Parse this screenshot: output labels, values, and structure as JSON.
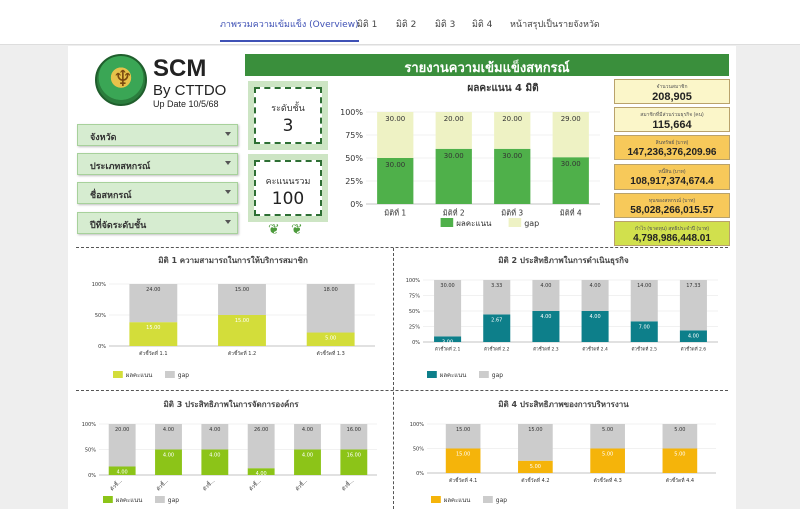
{
  "nav": {
    "tabs": [
      "ภาพรวมความเข้มแข็ง (Overview)",
      "มิติ 1",
      "มิติ 2",
      "มิติ 3",
      "มิติ 4",
      "หน้าสรุปเป็นรายจังหวัด"
    ],
    "active": 0,
    "accent": "#3f51b5"
  },
  "brand": {
    "title": "SCM",
    "subtitle": "By CTTDO",
    "updated": "Up Date 10/5/68"
  },
  "filters": [
    "จังหวัด",
    "ประเภทสหกรณ์",
    "ชื่อสหกรณ์",
    "ปีที่จัดระดับชั้น"
  ],
  "banner": "รายงานความเข้มแข็งสหกรณ์",
  "scores": {
    "level": {
      "label": "ระดับชั้น",
      "value": "3"
    },
    "total": {
      "label": "คะแนนรวม",
      "value": "100"
    }
  },
  "kpis": [
    {
      "label": "จำนวนสมาชิก",
      "value": "208,905",
      "color": "#fbf6c9"
    },
    {
      "label": "สมาชิกที่มีส่วนร่วมธุรกิจ (คน)",
      "value": "115,664",
      "color": "#fbf6c9"
    },
    {
      "label": "สินทรัพย์ (บาท)",
      "value": "147,236,376,209.96",
      "color": "#f7c95a"
    },
    {
      "label": "หนี้สิน (บาท)",
      "value": "108,917,374,674.4",
      "color": "#f7c95a"
    },
    {
      "label": "ทุนของสหกรณ์ (บาท)",
      "value": "58,028,266,015.57",
      "color": "#f7c95a"
    },
    {
      "label": "กำไร (ขาดทุน) สุทธิประจำปี (บาท)",
      "value": "4,798,986,448.01",
      "color": "#d1e04d"
    }
  ],
  "legend": {
    "score": "ผลคะแนน",
    "gap": "gap"
  },
  "chart_data": [
    {
      "type": "bar",
      "stacked": true,
      "title": "ผลคะแนน 4 มิติ",
      "categories": [
        "มิติที่ 1",
        "มิติที่ 2",
        "มิติที่ 3",
        "มิติที่ 4"
      ],
      "series": [
        {
          "name": "ผลคะแนน",
          "values": [
            30,
            30,
            30,
            30
          ],
          "labels": [
            "30.00",
            "30.00",
            "30.00",
            "30.00"
          ],
          "color": "#4fb04a"
        },
        {
          "name": "gap",
          "values": [
            30,
            20,
            20,
            29
          ],
          "labels": [
            "30.00",
            "20.00",
            "20.00",
            "29.00"
          ],
          "color": "#eef2c4"
        }
      ],
      "ytick_labels": [
        "0%",
        "25%",
        "50%",
        "75%",
        "100%"
      ],
      "legend_position": "bottom"
    },
    {
      "type": "bar",
      "stacked": true,
      "title": "มิติ 1 ความสามารถในการให้บริการสมาชิก",
      "categories": [
        "ตัวชี้วัดที่ 1.1",
        "ตัวชี้วัดที่ 1.2",
        "ตัวชี้วัดที่ 1.3"
      ],
      "series": [
        {
          "name": "ผลคะแนน",
          "values": [
            15,
            15,
            5
          ],
          "labels": [
            "15.00",
            "15.00",
            "5.00"
          ],
          "color": "#d3dd3a"
        },
        {
          "name": "gap",
          "values": [
            24,
            15,
            18
          ],
          "labels": [
            "24.00",
            "15.00",
            "18.00"
          ],
          "color": "#cccccc"
        }
      ],
      "ytick_labels": [
        "0%",
        "50%",
        "100%"
      ],
      "legend_position": "bottom-left"
    },
    {
      "type": "bar",
      "stacked": true,
      "title": "มิติ 2 ประสิทธิภาพในการดำเนินธุรกิจ",
      "categories": [
        "ตัวชี้วัดที่ 2.1",
        "ตัวชี้วัดที่ 2.2",
        "ตัวชี้วัดที่ 2.3",
        "ตัวชี้วัดที่ 2.4",
        "ตัวชี้วัดที่ 2.5",
        "ตัวชี้วัดที่ 2.6"
      ],
      "series": [
        {
          "name": "ผลคะแนน",
          "values": [
            3,
            2.67,
            4,
            4,
            7,
            4
          ],
          "labels": [
            "3.00",
            "2.67",
            "4.00",
            "4.00",
            "7.00",
            "4.00"
          ],
          "color": "#0d7f8a"
        },
        {
          "name": "gap",
          "values": [
            30,
            3.33,
            4,
            4,
            14,
            17.33
          ],
          "labels": [
            "30.00",
            "3.33",
            "4.00",
            "4.00",
            "14.00",
            "17.33"
          ],
          "color": "#cccccc"
        }
      ],
      "ytick_labels": [
        "0%",
        "25%",
        "50%",
        "75%",
        "100%"
      ],
      "legend_position": "bottom-left"
    },
    {
      "type": "bar",
      "stacked": true,
      "title": "มิติ 3 ประสิทธิภาพในการจัดการองค์กร",
      "categories": [
        "ตัวชี้...",
        "ตัวชี้...",
        "ตัวชี้...",
        "ตัวชี้...",
        "ตัวชี้...",
        "ตัวชี้..."
      ],
      "series": [
        {
          "name": "ผลคะแนน",
          "values": [
            4,
            4,
            4,
            4,
            4,
            16
          ],
          "labels": [
            "4.00",
            "4.00",
            "4.00",
            "4.00",
            "4.00",
            "16.00"
          ],
          "color": "#8cc418"
        },
        {
          "name": "gap",
          "values": [
            20,
            4,
            4,
            26,
            4,
            16
          ],
          "labels": [
            "20.00",
            "4.00",
            "4.00",
            "26.00",
            "4.00",
            "16.00"
          ],
          "color": "#cccccc"
        }
      ],
      "ytick_labels": [
        "0%",
        "50%",
        "100%"
      ],
      "legend_position": "bottom-left"
    },
    {
      "type": "bar",
      "stacked": true,
      "title": "มิติ 4 ประสิทธิภาพของการบริหารงาน",
      "categories": [
        "ตัวชี้วัดที่ 4.1",
        "ตัวชี้วัดที่ 4.2",
        "ตัวชี้วัดที่ 4.3",
        "ตัวชี้วัดที่ 4.4"
      ],
      "series": [
        {
          "name": "ผลคะแนน",
          "values": [
            15,
            5,
            5,
            5
          ],
          "labels": [
            "15.00",
            "5.00",
            "5.00",
            "5.00"
          ],
          "color": "#f5b40a"
        },
        {
          "name": "gap",
          "values": [
            15,
            15,
            5,
            5
          ],
          "labels": [
            "15.00",
            "15.00",
            "5.00",
            "5.00"
          ],
          "color": "#cccccc"
        }
      ],
      "ytick_labels": [
        "0%",
        "50%",
        "100%"
      ],
      "legend_position": "bottom-left"
    }
  ]
}
